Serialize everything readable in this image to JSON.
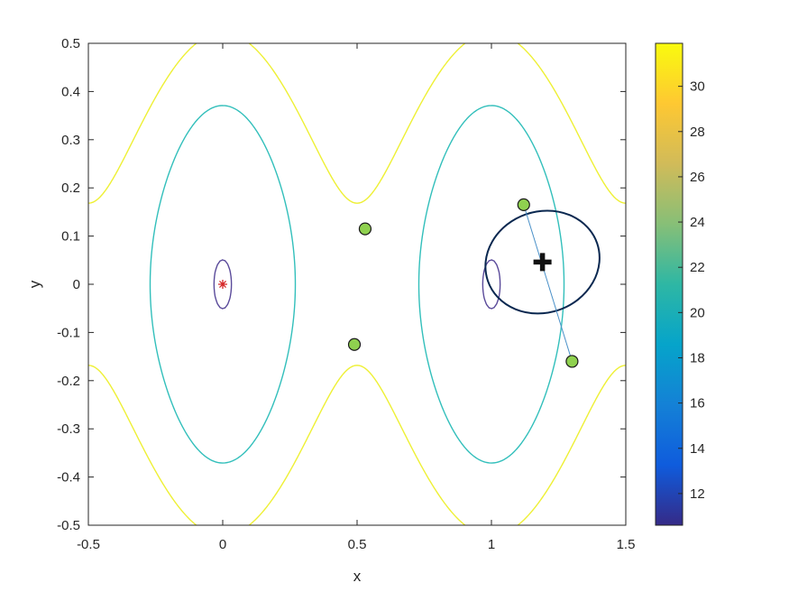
{
  "chart_data": {
    "type": "contour",
    "xlabel": "x",
    "ylabel": "y",
    "xlim": [
      -0.5,
      1.5
    ],
    "ylim": [
      -0.5,
      0.5
    ],
    "xticks": [
      -0.5,
      0,
      0.5,
      1,
      1.5
    ],
    "xtick_labels": [
      "-0.5",
      "0",
      "0.5",
      "1",
      "1.5"
    ],
    "yticks": [
      -0.5,
      -0.4,
      -0.3,
      -0.2,
      -0.1,
      0,
      0.1,
      0.2,
      0.3,
      0.4,
      0.5
    ],
    "ytick_labels": [
      "-0.5",
      "-0.4",
      "-0.3",
      "-0.2",
      "-0.1",
      "0",
      "0.1",
      "0.2",
      "0.3",
      "0.4",
      "0.5"
    ],
    "colorbar": {
      "range": [
        10.6,
        31.9
      ],
      "ticks": [
        12,
        14,
        16,
        18,
        20,
        22,
        24,
        26,
        28,
        30
      ],
      "tick_labels": [
        "12",
        "14",
        "16",
        "18",
        "20",
        "22",
        "24",
        "26",
        "28",
        "30"
      ],
      "colormap": "parula"
    },
    "contour_levels": [
      {
        "level": 10.7,
        "color": "#5a4a9a"
      },
      {
        "level": 21.2,
        "color": "#32bfbb"
      },
      {
        "level": 31.7,
        "color": "#eef035"
      }
    ],
    "markers": {
      "minimum": {
        "x": 0,
        "y": 0,
        "color": "#d62728"
      },
      "green_points": [
        {
          "x": 0.53,
          "y": 0.115
        },
        {
          "x": 0.49,
          "y": -0.125
        },
        {
          "x": 1.12,
          "y": 0.165
        },
        {
          "x": 1.3,
          "y": -0.16
        }
      ],
      "green_color": "#8fd14f",
      "center": {
        "x": 1.19,
        "y": 0.046
      },
      "center_color": "#111111",
      "ellipse": {
        "cx": 1.19,
        "cy": 0.046,
        "rx": 0.215,
        "ry": 0.105,
        "angle_deg": 19,
        "color": "#0a2850"
      },
      "link_line": {
        "x1": 1.12,
        "y1": 0.165,
        "x2": 1.3,
        "y2": -0.16,
        "color": "#4a90c8"
      }
    }
  }
}
